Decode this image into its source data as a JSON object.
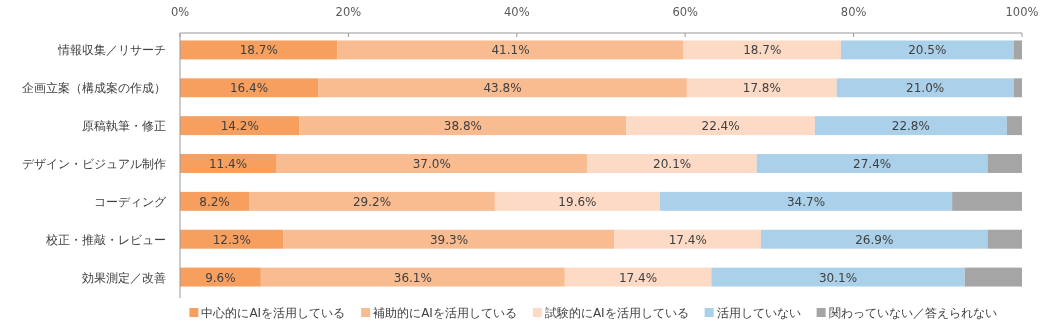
{
  "chart_data": {
    "type": "bar",
    "orientation": "horizontal",
    "stacked": true,
    "categories": [
      "情報収集／リサーチ",
      "企画立案（構成案の作成）",
      "原稿執筆・修正",
      "デザイン・ビジュアル制作",
      "コーディング",
      "校正・推敲・レビュー",
      "効果測定／改善"
    ],
    "series": [
      {
        "name": "中心的にAIを活用している",
        "color": "#f79f5e",
        "values": [
          18.7,
          16.4,
          14.2,
          11.4,
          8.2,
          12.3,
          9.6
        ],
        "value_labels": [
          "18.7%",
          "16.4%",
          "14.2%",
          "11.4%",
          "8.2%",
          "12.3%",
          "9.6%"
        ]
      },
      {
        "name": "補助的にAIを活用している",
        "color": "#f9bb90",
        "values": [
          41.1,
          43.8,
          38.8,
          37.0,
          29.2,
          39.3,
          36.1
        ],
        "value_labels": [
          "41.1%",
          "43.8%",
          "38.8%",
          "37.0%",
          "29.2%",
          "39.3%",
          "36.1%"
        ]
      },
      {
        "name": "試験的にAIを活用している",
        "color": "#fddac5",
        "values": [
          18.7,
          17.8,
          22.4,
          20.1,
          19.6,
          17.4,
          17.4
        ],
        "value_labels": [
          "18.7%",
          "17.8%",
          "22.4%",
          "20.1%",
          "19.6%",
          "17.4%",
          "17.4%"
        ]
      },
      {
        "name": "活用していない",
        "color": "#abd1ea",
        "values": [
          20.5,
          21.0,
          22.8,
          27.4,
          34.7,
          26.9,
          30.1
        ],
        "value_labels": [
          "20.5%",
          "21.0%",
          "22.8%",
          "27.4%",
          "34.7%",
          "26.9%",
          "30.1%"
        ]
      },
      {
        "name": "関わっていない／答えられない",
        "color": "#a5a5a5",
        "values": [
          1.0,
          1.0,
          1.8,
          4.1,
          8.3,
          4.1,
          6.8
        ]
      }
    ],
    "xlim": [
      0,
      100
    ],
    "xticks": [
      {
        "value": 0,
        "label": "0%"
      },
      {
        "value": 20,
        "label": "20%"
      },
      {
        "value": 40,
        "label": "40%"
      },
      {
        "value": 60,
        "label": "60%"
      },
      {
        "value": 80,
        "label": "80%"
      },
      {
        "value": 100,
        "label": "100%"
      }
    ],
    "legend": "bottom"
  }
}
